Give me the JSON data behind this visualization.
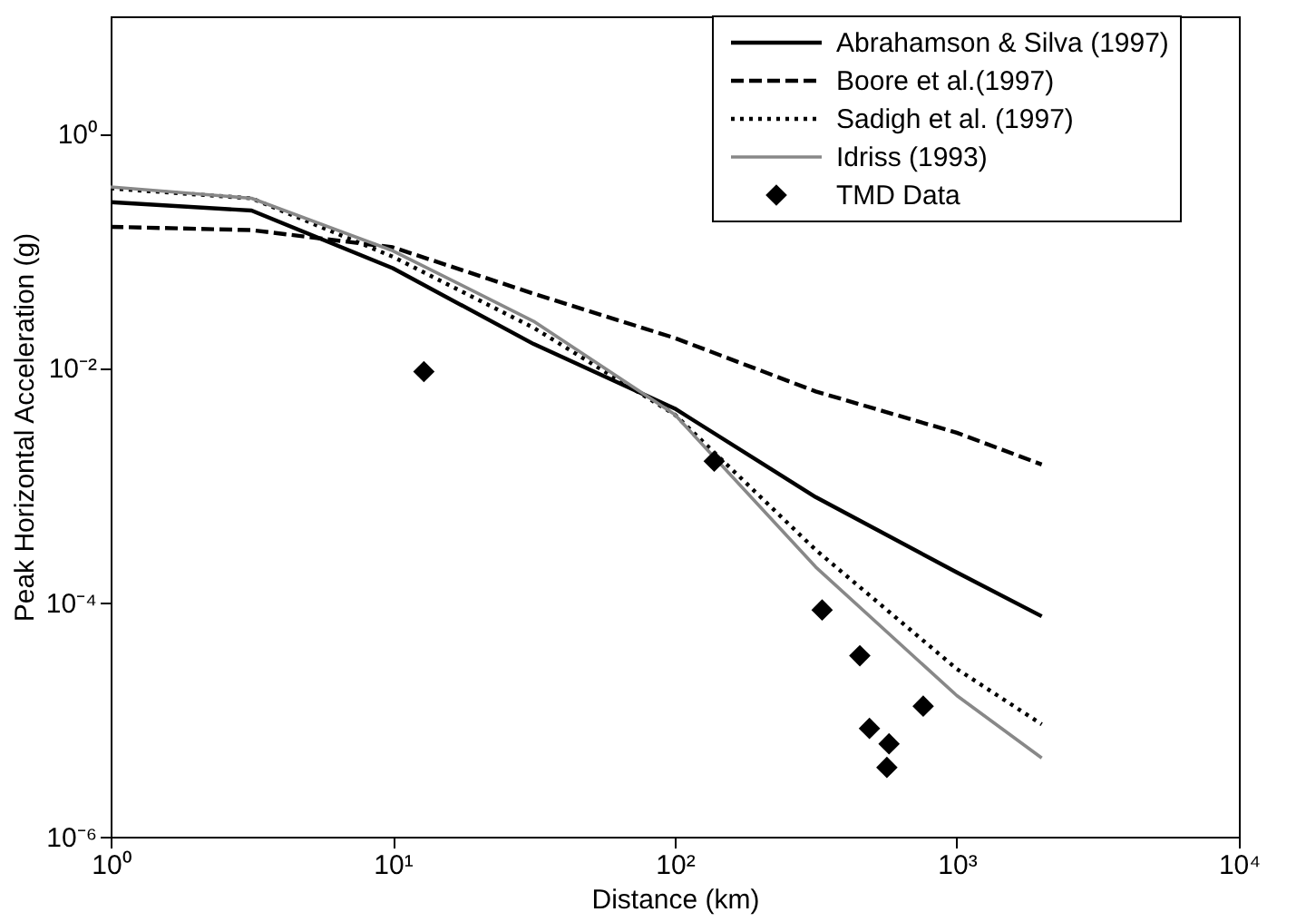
{
  "chart_data": {
    "type": "line",
    "xlabel": "Distance (km)",
    "ylabel": "Peak Horizontal Acceleration (g)",
    "log": "xy",
    "grid": false,
    "legend": "top right",
    "xlim": [
      1,
      10000
    ],
    "ylim": [
      1e-06,
      10
    ],
    "xticks": [
      {
        "value": 1,
        "label": "10⁰"
      },
      {
        "value": 10,
        "label": "10¹"
      },
      {
        "value": 100,
        "label": "10²"
      },
      {
        "value": 1000,
        "label": "10³"
      },
      {
        "value": 10000,
        "label": "10⁴"
      }
    ],
    "yticks": [
      {
        "value": 1e-06,
        "label": "10⁻⁶"
      },
      {
        "value": 0.0001,
        "label": "10⁻⁴"
      },
      {
        "value": 0.01,
        "label": "10⁻²"
      },
      {
        "value": 1,
        "label": "10⁰"
      }
    ],
    "series": [
      {
        "name": "Abrahamson & Silva (1997)",
        "color": "#000000",
        "line_style": "solid",
        "x": [
          1,
          3.16,
          10,
          31.6,
          100,
          316,
          1000,
          2000
        ],
        "values": [
          0.26,
          0.22,
          0.071,
          0.016,
          0.0045,
          0.00079,
          0.00018,
          7.6e-05
        ]
      },
      {
        "name": "Boore et al.(1997)",
        "color": "#000000",
        "line_style": "dashed",
        "x": [
          1,
          3.16,
          10,
          31.6,
          100,
          316,
          1000,
          2000
        ],
        "values": [
          0.16,
          0.15,
          0.107,
          0.043,
          0.018,
          0.0063,
          0.0028,
          0.0015
        ]
      },
      {
        "name": "Sadigh et al. (1997)",
        "color": "#000000",
        "line_style": "dotted",
        "x": [
          1,
          3.16,
          10,
          31.6,
          100,
          316,
          1000,
          2000
        ],
        "values": [
          0.34,
          0.28,
          0.089,
          0.022,
          0.004,
          0.00028,
          2.7e-05,
          9.1e-06
        ]
      },
      {
        "name": "Idriss (1993)",
        "color": "#888888",
        "line_style": "solid",
        "x": [
          1,
          3.16,
          10,
          31.6,
          100,
          316,
          1000,
          2000
        ],
        "values": [
          0.35,
          0.28,
          0.1,
          0.025,
          0.004,
          0.0002,
          1.6e-05,
          4.7e-06
        ]
      },
      {
        "name": "TMD Data",
        "type": "scatter",
        "marker": "diamond",
        "color": "#000000",
        "x": [
          12.9,
          138,
          333,
          453,
          490,
          575,
          565,
          760
        ],
        "values": [
          0.0093,
          0.0016,
          8.6e-05,
          3.5e-05,
          8.4e-06,
          6.2e-06,
          3.9e-06,
          1.3e-05
        ]
      }
    ]
  }
}
